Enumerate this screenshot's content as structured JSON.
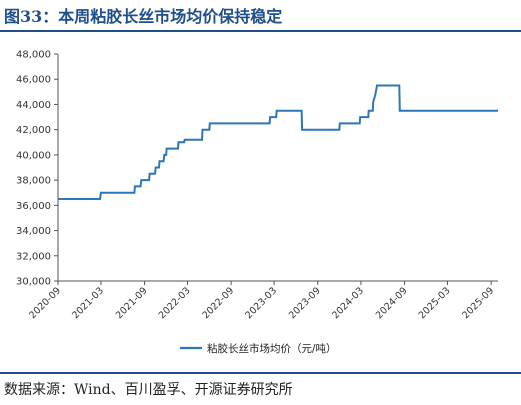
{
  "figure": {
    "title": "图33：本周粘胶长丝市场均价保持稳定",
    "source": "数据来源：Wind、百川盈孚、开源证券研究所"
  },
  "colors": {
    "accent": "#1f4e8c",
    "line": "#2e75b6",
    "axis": "#555555"
  },
  "chart_data": {
    "type": "line",
    "title": "",
    "xlabel": "",
    "ylabel": "",
    "ylim": [
      30000,
      48000
    ],
    "y_ticks": [
      30000,
      32000,
      34000,
      36000,
      38000,
      40000,
      42000,
      44000,
      46000,
      48000
    ],
    "y_tick_labels": [
      "30,000",
      "32,000",
      "34,000",
      "36,000",
      "38,000",
      "40,000",
      "42,000",
      "44,000",
      "46,000",
      "48,000"
    ],
    "x_ticks": [
      "2020-09",
      "2021-03",
      "2021-09",
      "2022-03",
      "2022-09",
      "2023-03",
      "2023-09",
      "2024-03",
      "2024-09",
      "2025-03",
      "2025-09"
    ],
    "x_range": [
      "2020-09-01",
      "2025-09-30"
    ],
    "grid": false,
    "legend_position": "bottom",
    "series": [
      {
        "name": "粘胶长丝市场均价（元/吨）",
        "step": true,
        "points": [
          [
            "2020-09-01",
            36500
          ],
          [
            "2021-02-25",
            36500
          ],
          [
            "2021-03-01",
            37000
          ],
          [
            "2021-07-20",
            37000
          ],
          [
            "2021-07-22",
            37500
          ],
          [
            "2021-08-15",
            37500
          ],
          [
            "2021-08-18",
            38000
          ],
          [
            "2021-09-20",
            38000
          ],
          [
            "2021-09-22",
            38500
          ],
          [
            "2021-10-15",
            38500
          ],
          [
            "2021-10-18",
            39000
          ],
          [
            "2021-11-01",
            39000
          ],
          [
            "2021-11-03",
            39500
          ],
          [
            "2021-11-20",
            39500
          ],
          [
            "2021-11-23",
            40000
          ],
          [
            "2021-12-01",
            40000
          ],
          [
            "2021-12-03",
            40500
          ],
          [
            "2022-01-20",
            40500
          ],
          [
            "2022-01-22",
            41000
          ],
          [
            "2022-02-15",
            41000
          ],
          [
            "2022-02-17",
            41200
          ],
          [
            "2022-05-01",
            41200
          ],
          [
            "2022-05-03",
            42000
          ],
          [
            "2022-06-01",
            42000
          ],
          [
            "2022-06-03",
            42500
          ],
          [
            "2023-02-10",
            42500
          ],
          [
            "2023-02-12",
            43000
          ],
          [
            "2023-03-10",
            43000
          ],
          [
            "2023-03-12",
            43500
          ],
          [
            "2023-06-25",
            43500
          ],
          [
            "2023-06-27",
            42000
          ],
          [
            "2023-12-01",
            42000
          ],
          [
            "2023-12-03",
            42500
          ],
          [
            "2024-02-25",
            42500
          ],
          [
            "2024-02-27",
            43000
          ],
          [
            "2024-04-01",
            43000
          ],
          [
            "2024-04-03",
            43500
          ],
          [
            "2024-04-20",
            43500
          ],
          [
            "2024-04-22",
            44200
          ],
          [
            "2024-05-01",
            44800
          ],
          [
            "2024-05-08",
            45500
          ],
          [
            "2024-08-10",
            45500
          ],
          [
            "2024-08-12",
            43500
          ],
          [
            "2025-09-30",
            43500
          ]
        ]
      }
    ]
  }
}
